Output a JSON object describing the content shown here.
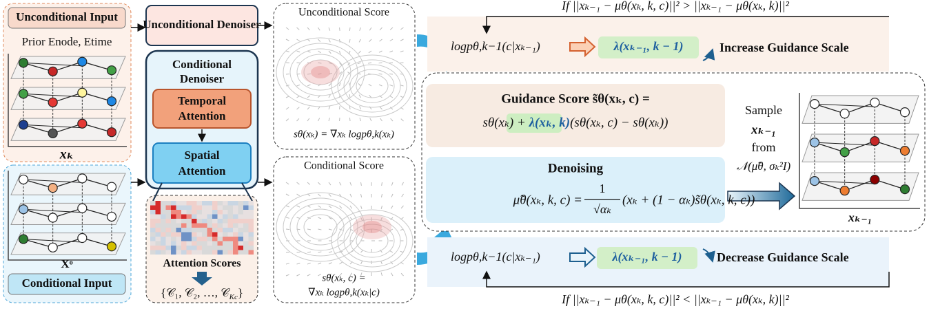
{
  "unconditional_input": {
    "title": "Unconditional Input",
    "prior": "Prior Enode, Etime",
    "label": "xₖ"
  },
  "conditional_input": {
    "title": "Conditional Input",
    "label": "Xᵒ"
  },
  "unconditional_denoiser": {
    "title": "Unconditional Denoiser"
  },
  "conditional_denoiser": {
    "title": [
      "Conditional",
      "Denoiser"
    ],
    "temporal": [
      "Temporal",
      "Attention"
    ],
    "spatial": [
      "Spatial",
      "Attention"
    ]
  },
  "attention_scores": {
    "title": "Attention Scores",
    "clusters": {
      "open": "{𝒞₁, 𝒞₂, …, 𝒞",
      "sub": "Kc",
      "close": "}"
    }
  },
  "scores": {
    "unconditional": {
      "title": "Unconditional Score",
      "formula": "sθ(xₖ) = ∇xₖ logpθ,k(xₖ)"
    },
    "conditional": {
      "title": "Conditional Score",
      "formula": [
        "sθ(xₖ, c) =",
        "∇xₖ logpθ,k(xₖ|c)"
      ]
    }
  },
  "increase": {
    "condition": "If ||xₖ₋₁ − μθ(xₖ, k, c)||² > ||xₖ₋₁ − μθ(xₖ, k)||²",
    "likelihood": "logpθ,k−1(c|xₖ₋₁)",
    "scale": "λ(xₖ₋₁, k − 1)",
    "action": "Increase Guidance Scale"
  },
  "decrease": {
    "condition": "If ||xₖ₋₁ − μθ(xₖ, k, c)||² < ||xₖ₋₁ − μθ(xₖ, k)||²",
    "likelihood": "logpθ,k−1(c|xₖ₋₁)",
    "scale": "λ(xₖ₋₁, k − 1)",
    "action": "Decrease Guidance Scale"
  },
  "guidance_score": {
    "title": "Guidance Score s̃θ(xₖ, c) =",
    "terms": [
      "sθ(xₖ) + ",
      "λ(xₖ, k)",
      "(sθ(xₖ, c) − sθ(xₖ))"
    ]
  },
  "denoising": {
    "title": "Denoising",
    "lhs": "μ̃θ(xₖ, k, c) =",
    "numerator": "1",
    "denominator": "√αₖ",
    "rhs": "(xₖ + (1 − αₖ)s̃θ(xₖ, k, c))"
  },
  "sample": [
    "Sample",
    "xₖ₋₁",
    "from",
    "𝒩(μ̃θ, σₖ²I)"
  ],
  "output_label": "xₖ₋₁"
}
